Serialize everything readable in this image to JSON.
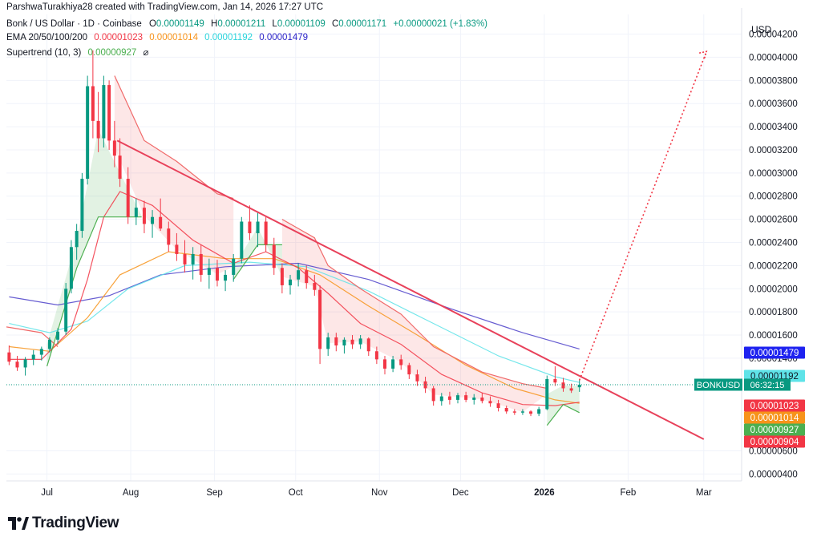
{
  "publisher_line": "ParshwaTurakhiya28 created with TradingView.com, Jan 14, 2026 17:27 UTC",
  "symbol_title": "Bonk / US Dollar · 1D · Coinbase",
  "ohlc": {
    "o_label": "O",
    "o": "0.00001149",
    "h_label": "H",
    "h": "0.00001211",
    "l_label": "L",
    "l": "0.00001109",
    "c_label": "C",
    "c": "0.00001171",
    "change": "+0.00000021 (+1.83%)"
  },
  "ema": {
    "label": "EMA 20/50/100/200",
    "v20": "0.00001023",
    "v50": "0.00001014",
    "v100": "0.00001192",
    "v200": "0.00001479"
  },
  "supertrend": {
    "label": "Supertrend (10, 3)",
    "value": "0.00000927",
    "symbol": "⌀"
  },
  "currency": "USD",
  "brand": "TradingView",
  "symbol_tag": {
    "symbol": "BONKUSD",
    "countdown": "06:32:15"
  },
  "colors": {
    "up": "#089981",
    "down": "#f23645",
    "ema20": "#f23645",
    "ema50": "#f7931a",
    "ema100": "#5ee3e8",
    "ema200": "#4b3fc9",
    "trendline": "#e8415a",
    "st_up": "#4caf50",
    "st_down": "#f06a6a"
  },
  "chart_data": {
    "type": "candlestick",
    "price_unit": "USD",
    "y_axis_ticks": [
      "0.00004200",
      "0.00004000",
      "0.00003800",
      "0.00003600",
      "0.00003400",
      "0.00003200",
      "0.00003000",
      "0.00002800",
      "0.00002600",
      "0.00002400",
      "0.00002200",
      "0.00002000",
      "0.00001800",
      "0.00001600",
      "0.00001400",
      "0.00000600",
      "0.00000400"
    ],
    "y_range": [
      3.4e-06,
      4.37e-05
    ],
    "x_axis_ticks": [
      {
        "label": "Jul",
        "date": "2025-07-01",
        "bold": false
      },
      {
        "label": "Aug",
        "date": "2025-08-01",
        "bold": false
      },
      {
        "label": "Sep",
        "date": "2025-09-01",
        "bold": false
      },
      {
        "label": "Oct",
        "date": "2025-10-01",
        "bold": false
      },
      {
        "label": "Nov",
        "date": "2025-11-01",
        "bold": false
      },
      {
        "label": "Dec",
        "date": "2025-12-01",
        "bold": false
      },
      {
        "label": "2026",
        "date": "2026-01-01",
        "bold": true
      },
      {
        "label": "Feb",
        "date": "2026-02-01",
        "bold": false
      },
      {
        "label": "Mar",
        "date": "2026-03-01",
        "bold": false
      }
    ],
    "x_range": [
      "2025-06-16",
      "2026-03-15"
    ],
    "price_tags": [
      {
        "value": "0.00001479",
        "color": "#1e22f0",
        "text_color": "#ffffff"
      },
      {
        "value": "0.00001192",
        "color": "#5ee3e8",
        "text_color": "#131722"
      },
      {
        "value": "0.00001023",
        "color": "#f23645",
        "text_color": "#ffffff"
      },
      {
        "value": "0.00001014",
        "color": "#f7931a",
        "text_color": "#ffffff"
      },
      {
        "value": "0.00000927",
        "color": "#4caf50",
        "text_color": "#ffffff"
      },
      {
        "value": "0.00000904",
        "color": "#f23645",
        "text_color": "#ffffff"
      }
    ],
    "last_price": 1.171e-05,
    "candles": [
      [
        "2025-06-17",
        1.45e-05,
        1.51e-05,
        1.34e-05,
        1.37e-05
      ],
      [
        "2025-06-20",
        1.37e-05,
        1.42e-05,
        1.29e-05,
        1.32e-05
      ],
      [
        "2025-06-23",
        1.32e-05,
        1.41e-05,
        1.25e-05,
        1.39e-05
      ],
      [
        "2025-06-26",
        1.39e-05,
        1.47e-05,
        1.34e-05,
        1.43e-05
      ],
      [
        "2025-06-29",
        1.43e-05,
        1.5e-05,
        1.38e-05,
        1.48e-05
      ],
      [
        "2025-07-02",
        1.48e-05,
        1.58e-05,
        1.45e-05,
        1.56e-05
      ],
      [
        "2025-07-05",
        1.56e-05,
        1.66e-05,
        1.52e-05,
        1.63e-05
      ],
      [
        "2025-07-08",
        1.63e-05,
        2.05e-05,
        1.6e-05,
        2e-05
      ],
      [
        "2025-07-10",
        2e-05,
        2.42e-05,
        1.96e-05,
        2.36e-05
      ],
      [
        "2025-07-12",
        2.36e-05,
        2.56e-05,
        2.25e-05,
        2.5e-05
      ],
      [
        "2025-07-14",
        2.5e-05,
        3e-05,
        2.44e-05,
        2.95e-05
      ],
      [
        "2025-07-16",
        2.95e-05,
        3.84e-05,
        2.9e-05,
        3.75e-05
      ],
      [
        "2025-07-18",
        3.75e-05,
        4.06e-05,
        3.3e-05,
        3.45e-05
      ],
      [
        "2025-07-20",
        3.45e-05,
        3.7e-05,
        3.18e-05,
        3.3e-05
      ],
      [
        "2025-07-22",
        3.3e-05,
        3.84e-05,
        3.22e-05,
        3.76e-05
      ],
      [
        "2025-07-24",
        3.76e-05,
        3.8e-05,
        3.2e-05,
        3.28e-05
      ],
      [
        "2025-07-26",
        3.28e-05,
        3.45e-05,
        3.05e-05,
        3.15e-05
      ],
      [
        "2025-07-28",
        3.15e-05,
        3.3e-05,
        2.88e-05,
        2.95e-05
      ],
      [
        "2025-07-31",
        2.95e-05,
        3.05e-05,
        2.56e-05,
        2.62e-05
      ],
      [
        "2025-08-03",
        2.62e-05,
        2.78e-05,
        2.55e-05,
        2.7e-05
      ],
      [
        "2025-08-06",
        2.7e-05,
        2.76e-05,
        2.48e-05,
        2.56e-05
      ],
      [
        "2025-08-09",
        2.56e-05,
        2.68e-05,
        2.44e-05,
        2.62e-05
      ],
      [
        "2025-08-12",
        2.62e-05,
        2.78e-05,
        2.5e-05,
        2.52e-05
      ],
      [
        "2025-08-15",
        2.52e-05,
        2.58e-05,
        2.32e-05,
        2.38e-05
      ],
      [
        "2025-08-18",
        2.38e-05,
        2.48e-05,
        2.24e-05,
        2.3e-05
      ],
      [
        "2025-08-21",
        2.3e-05,
        2.42e-05,
        2.14e-05,
        2.21e-05
      ],
      [
        "2025-08-24",
        2.21e-05,
        2.36e-05,
        2.08e-05,
        2.3e-05
      ],
      [
        "2025-08-27",
        2.3e-05,
        2.38e-05,
        2.06e-05,
        2.12e-05
      ],
      [
        "2025-08-30",
        2.12e-05,
        2.26e-05,
        2e-05,
        2.18e-05
      ],
      [
        "2025-09-02",
        2.18e-05,
        2.25e-05,
        2.02e-05,
        2.07e-05
      ],
      [
        "2025-09-05",
        2.07e-05,
        2.16e-05,
        1.98e-05,
        2.12e-05
      ],
      [
        "2025-09-08",
        2.12e-05,
        2.3e-05,
        2.06e-05,
        2.26e-05
      ],
      [
        "2025-09-11",
        2.26e-05,
        2.62e-05,
        2.22e-05,
        2.58e-05
      ],
      [
        "2025-09-14",
        2.58e-05,
        2.72e-05,
        2.42e-05,
        2.48e-05
      ],
      [
        "2025-09-17",
        2.48e-05,
        2.66e-05,
        2.36e-05,
        2.58e-05
      ],
      [
        "2025-09-20",
        2.58e-05,
        2.62e-05,
        2.32e-05,
        2.38e-05
      ],
      [
        "2025-09-23",
        2.38e-05,
        2.44e-05,
        2.12e-05,
        2.18e-05
      ],
      [
        "2025-09-26",
        2.18e-05,
        2.22e-05,
        1.96e-05,
        2.03e-05
      ],
      [
        "2025-09-29",
        2.03e-05,
        2.12e-05,
        1.95e-05,
        2.08e-05
      ],
      [
        "2025-10-02",
        2.08e-05,
        2.22e-05,
        2.02e-05,
        2.16e-05
      ],
      [
        "2025-10-05",
        2.16e-05,
        2.2e-05,
        2e-05,
        2.05e-05
      ],
      [
        "2025-10-08",
        2.05e-05,
        2.12e-05,
        1.94e-05,
        1.99e-05
      ],
      [
        "2025-10-10",
        1.99e-05,
        2.03e-05,
        1.35e-05,
        1.48e-05
      ],
      [
        "2025-10-13",
        1.48e-05,
        1.62e-05,
        1.42e-05,
        1.58e-05
      ],
      [
        "2025-10-16",
        1.58e-05,
        1.62e-05,
        1.46e-05,
        1.51e-05
      ],
      [
        "2025-10-19",
        1.51e-05,
        1.58e-05,
        1.44e-05,
        1.56e-05
      ],
      [
        "2025-10-22",
        1.56e-05,
        1.6e-05,
        1.48e-05,
        1.52e-05
      ],
      [
        "2025-10-25",
        1.52e-05,
        1.6e-05,
        1.48e-05,
        1.57e-05
      ],
      [
        "2025-10-28",
        1.57e-05,
        1.58e-05,
        1.42e-05,
        1.46e-05
      ],
      [
        "2025-10-31",
        1.46e-05,
        1.5e-05,
        1.35e-05,
        1.39e-05
      ],
      [
        "2025-11-03",
        1.39e-05,
        1.42e-05,
        1.26e-05,
        1.31e-05
      ],
      [
        "2025-11-06",
        1.31e-05,
        1.42e-05,
        1.28e-05,
        1.39e-05
      ],
      [
        "2025-11-09",
        1.39e-05,
        1.43e-05,
        1.3e-05,
        1.34e-05
      ],
      [
        "2025-11-12",
        1.34e-05,
        1.36e-05,
        1.22e-05,
        1.26e-05
      ],
      [
        "2025-11-15",
        1.26e-05,
        1.3e-05,
        1.16e-05,
        1.2e-05
      ],
      [
        "2025-11-18",
        1.2e-05,
        1.24e-05,
        1.1e-05,
        1.14e-05
      ],
      [
        "2025-11-21",
        1.14e-05,
        1.16e-05,
        9.9e-06,
        1.03e-05
      ],
      [
        "2025-11-24",
        1.03e-05,
        1.1e-05,
        9.9e-06,
        1.07e-05
      ],
      [
        "2025-11-27",
        1.07e-05,
        1.11e-05,
        1e-05,
        1.04e-05
      ],
      [
        "2025-11-30",
        1.04e-05,
        1.1e-05,
        1.01e-05,
        1.08e-05
      ],
      [
        "2025-12-03",
        1.08e-05,
        1.11e-05,
        1.02e-05,
        1.04e-05
      ],
      [
        "2025-12-06",
        1.04e-05,
        1.09e-05,
        1e-05,
        1.06e-05
      ],
      [
        "2025-12-09",
        1.06e-05,
        1.1e-05,
        1.01e-05,
        1.03e-05
      ],
      [
        "2025-12-12",
        1.03e-05,
        1.07e-05,
        9.8e-06,
        1.01e-05
      ],
      [
        "2025-12-15",
        1.01e-05,
        1.04e-05,
        9.4e-06,
        9.7e-06
      ],
      [
        "2025-12-18",
        9.7e-06,
        9.9e-06,
        9.2e-06,
        9.4e-06
      ],
      [
        "2025-12-21",
        9.4e-06,
        9.6e-06,
        9.1e-06,
        9.3e-06
      ],
      [
        "2025-12-24",
        9.3e-06,
        9.6e-06,
        9.1e-06,
        9.4e-06
      ],
      [
        "2025-12-27",
        9.4e-06,
        9.5e-06,
        9e-06,
        9.2e-06
      ],
      [
        "2025-12-30",
        9.2e-06,
        9.8e-06,
        9e-06,
        9.6e-06
      ],
      [
        "2026-01-02",
        9.6e-06,
        1.25e-05,
        9.5e-06,
        1.22e-05
      ],
      [
        "2026-01-05",
        1.22e-05,
        1.33e-05,
        1.16e-05,
        1.19e-05
      ],
      [
        "2026-01-08",
        1.19e-05,
        1.23e-05,
        1.11e-05,
        1.14e-05
      ],
      [
        "2026-01-11",
        1.14e-05,
        1.18e-05,
        1.1e-05,
        1.12e-05
      ],
      [
        "2026-01-14",
        1.149e-05,
        1.211e-05,
        1.109e-05,
        1.171e-05
      ]
    ],
    "ema20": [
      [
        "2025-06-17",
        1.39e-05
      ],
      [
        "2025-06-29",
        1.39e-05
      ],
      [
        "2025-07-10",
        1.65e-05
      ],
      [
        "2025-07-16",
        2.08e-05
      ],
      [
        "2025-07-22",
        2.62e-05
      ],
      [
        "2025-07-28",
        2.84e-05
      ],
      [
        "2025-08-09",
        2.72e-05
      ],
      [
        "2025-08-24",
        2.42e-05
      ],
      [
        "2025-09-08",
        2.22e-05
      ],
      [
        "2025-09-20",
        2.32e-05
      ],
      [
        "2025-10-02",
        2.18e-05
      ],
      [
        "2025-10-13",
        1.96e-05
      ],
      [
        "2025-10-25",
        1.7e-05
      ],
      [
        "2025-11-09",
        1.52e-05
      ],
      [
        "2025-11-24",
        1.26e-05
      ],
      [
        "2025-12-09",
        1.1e-05
      ],
      [
        "2025-12-24",
        1e-05
      ],
      [
        "2026-01-05",
        9.9e-06
      ],
      [
        "2026-01-14",
        1.02e-05
      ]
    ],
    "ema50": [
      [
        "2025-06-17",
        1.5e-05
      ],
      [
        "2025-07-02",
        1.46e-05
      ],
      [
        "2025-07-16",
        1.75e-05
      ],
      [
        "2025-07-28",
        2.12e-05
      ],
      [
        "2025-08-15",
        2.32e-05
      ],
      [
        "2025-09-05",
        2.26e-05
      ],
      [
        "2025-09-23",
        2.26e-05
      ],
      [
        "2025-10-10",
        2.12e-05
      ],
      [
        "2025-10-28",
        1.85e-05
      ],
      [
        "2025-11-15",
        1.6e-05
      ],
      [
        "2025-12-03",
        1.34e-05
      ],
      [
        "2025-12-21",
        1.14e-05
      ],
      [
        "2026-01-05",
        1.04e-05
      ],
      [
        "2026-01-14",
        1.01e-05
      ]
    ],
    "ema100": [
      [
        "2025-06-17",
        1.7e-05
      ],
      [
        "2025-07-02",
        1.62e-05
      ],
      [
        "2025-07-16",
        1.72e-05
      ],
      [
        "2025-07-31",
        2e-05
      ],
      [
        "2025-08-21",
        2.2e-05
      ],
      [
        "2025-09-14",
        2.23e-05
      ],
      [
        "2025-10-05",
        2.19e-05
      ],
      [
        "2025-10-28",
        1.98e-05
      ],
      [
        "2025-11-21",
        1.7e-05
      ],
      [
        "2025-12-15",
        1.42e-05
      ],
      [
        "2026-01-05",
        1.24e-05
      ],
      [
        "2026-01-14",
        1.19e-05
      ]
    ],
    "ema200": [
      [
        "2025-06-17",
        1.93e-05
      ],
      [
        "2025-07-05",
        1.86e-05
      ],
      [
        "2025-07-24",
        1.94e-05
      ],
      [
        "2025-08-12",
        2.12e-05
      ],
      [
        "2025-09-05",
        2.19e-05
      ],
      [
        "2025-10-02",
        2.22e-05
      ],
      [
        "2025-10-28",
        2.08e-05
      ],
      [
        "2025-11-27",
        1.83e-05
      ],
      [
        "2025-12-24",
        1.62e-05
      ],
      [
        "2026-01-14",
        1.48e-05
      ]
    ],
    "supertrend_up_1": [
      [
        "2025-07-01",
        1.33e-05
      ],
      [
        "2025-07-12",
        2.18e-05
      ],
      [
        "2025-07-20",
        2.62e-05
      ],
      [
        "2025-08-05",
        2.62e-05
      ]
    ],
    "supertrend_down_1": [
      [
        "2025-06-16",
        1.67e-05
      ],
      [
        "2025-06-29",
        1.62e-05
      ],
      [
        "2025-07-05",
        1.5e-05
      ]
    ],
    "supertrend_down_2": [
      [
        "2025-07-26",
        3.84e-05
      ],
      [
        "2025-08-06",
        3.28e-05
      ],
      [
        "2025-08-18",
        3.1e-05
      ],
      [
        "2025-09-02",
        2.82e-05
      ],
      [
        "2025-09-08",
        2.78e-05
      ]
    ],
    "supertrend_up_2": [
      [
        "2025-09-08",
        2.08e-05
      ],
      [
        "2025-09-17",
        2.38e-05
      ],
      [
        "2025-09-26",
        2.38e-05
      ]
    ],
    "supertrend_down_3": [
      [
        "2025-09-26",
        2.6e-05
      ],
      [
        "2025-10-08",
        2.44e-05
      ],
      [
        "2025-10-13",
        2.2e-05
      ],
      [
        "2025-10-25",
        2e-05
      ],
      [
        "2025-11-09",
        1.78e-05
      ],
      [
        "2025-11-21",
        1.5e-05
      ],
      [
        "2025-12-09",
        1.28e-05
      ],
      [
        "2025-12-24",
        1.18e-05
      ],
      [
        "2026-01-02",
        1.14e-05
      ]
    ],
    "supertrend_up_3": [
      [
        "2026-01-02",
        8.2e-06
      ],
      [
        "2026-01-08",
        1e-05
      ],
      [
        "2026-01-14",
        9.3e-06
      ]
    ],
    "trendline": [
      [
        "2025-07-27",
        3.28e-05
      ],
      [
        "2026-03-01",
        7e-06
      ]
    ],
    "projection_arrow": [
      [
        "2026-01-14",
        1.21e-05
      ],
      [
        "2026-03-02",
        4.05e-05
      ]
    ]
  }
}
